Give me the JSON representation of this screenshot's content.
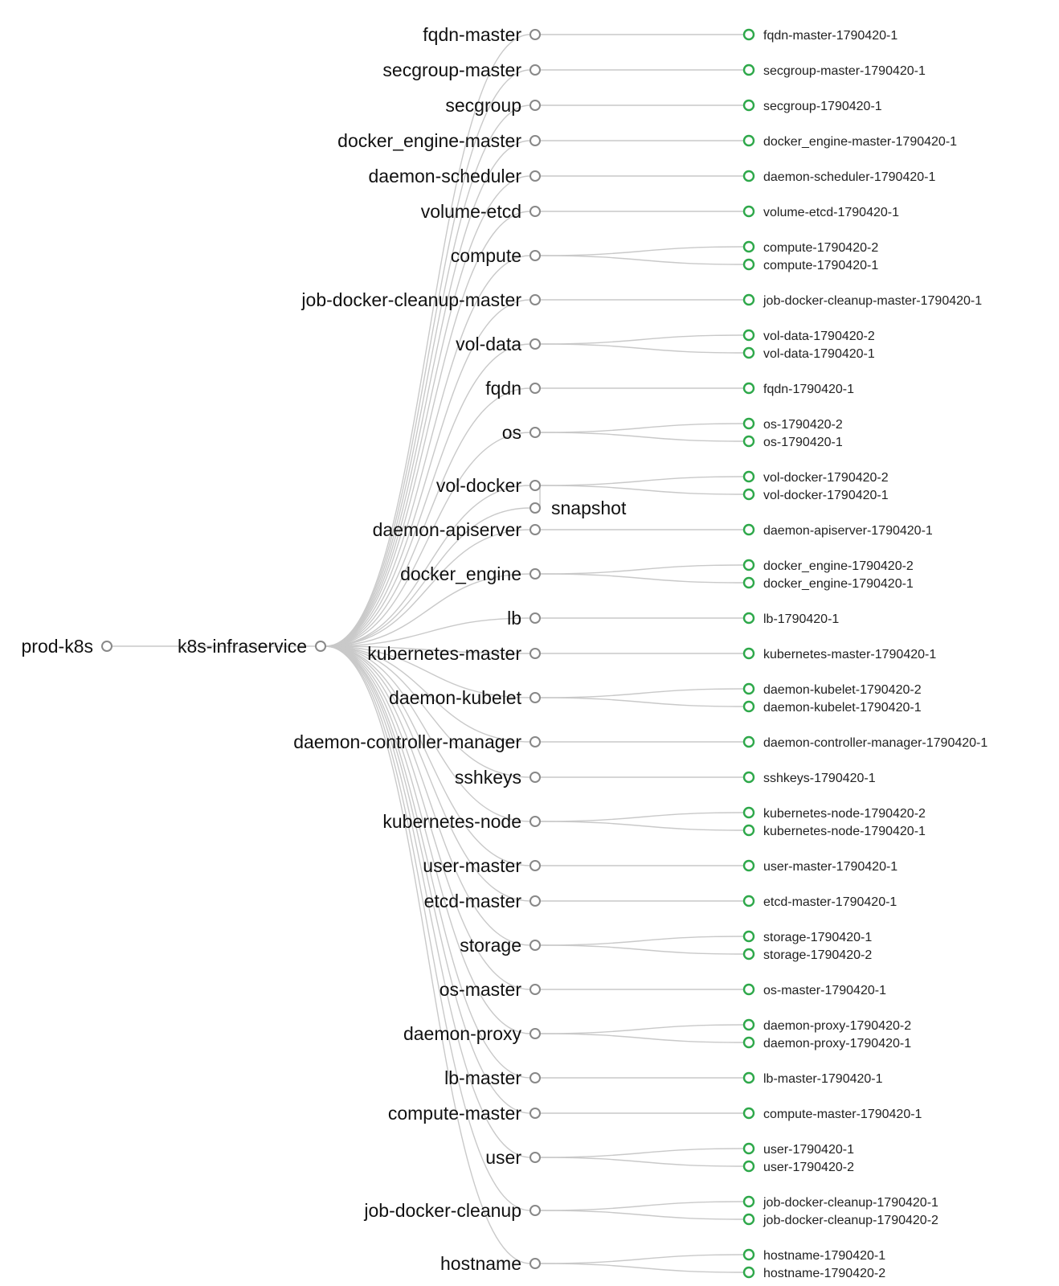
{
  "colors": {
    "leaf_node": "#2ea84a",
    "link": "#c9c9c9",
    "node_stroke": "#888888"
  },
  "root": {
    "label": "prod-k8s"
  },
  "service": {
    "label": "k8s-infraservice"
  },
  "groups": [
    {
      "label": "fqdn-master",
      "instances": [
        "fqdn-master-1790420-1"
      ]
    },
    {
      "label": "secgroup-master",
      "instances": [
        "secgroup-master-1790420-1"
      ]
    },
    {
      "label": "secgroup",
      "instances": [
        "secgroup-1790420-1"
      ]
    },
    {
      "label": "docker_engine-master",
      "instances": [
        "docker_engine-master-1790420-1"
      ]
    },
    {
      "label": "daemon-scheduler",
      "instances": [
        "daemon-scheduler-1790420-1"
      ]
    },
    {
      "label": "volume-etcd",
      "instances": [
        "volume-etcd-1790420-1"
      ]
    },
    {
      "label": "compute",
      "instances": [
        "compute-1790420-2",
        "compute-1790420-1"
      ]
    },
    {
      "label": "job-docker-cleanup-master",
      "instances": [
        "job-docker-cleanup-master-1790420-1"
      ]
    },
    {
      "label": "vol-data",
      "instances": [
        "vol-data-1790420-2",
        "vol-data-1790420-1"
      ]
    },
    {
      "label": "fqdn",
      "instances": [
        "fqdn-1790420-1"
      ]
    },
    {
      "label": "os",
      "instances": [
        "os-1790420-2",
        "os-1790420-1"
      ]
    },
    {
      "label": "vol-docker",
      "instances": [
        "vol-docker-1790420-2",
        "vol-docker-1790420-1"
      ],
      "sub": "snapshot"
    },
    {
      "label": "daemon-apiserver",
      "instances": [
        "daemon-apiserver-1790420-1"
      ]
    },
    {
      "label": "docker_engine",
      "instances": [
        "docker_engine-1790420-2",
        "docker_engine-1790420-1"
      ]
    },
    {
      "label": "lb",
      "instances": [
        "lb-1790420-1"
      ]
    },
    {
      "label": "kubernetes-master",
      "instances": [
        "kubernetes-master-1790420-1"
      ]
    },
    {
      "label": "daemon-kubelet",
      "instances": [
        "daemon-kubelet-1790420-2",
        "daemon-kubelet-1790420-1"
      ]
    },
    {
      "label": "daemon-controller-manager",
      "instances": [
        "daemon-controller-manager-1790420-1"
      ]
    },
    {
      "label": "sshkeys",
      "instances": [
        "sshkeys-1790420-1"
      ]
    },
    {
      "label": "kubernetes-node",
      "instances": [
        "kubernetes-node-1790420-2",
        "kubernetes-node-1790420-1"
      ]
    },
    {
      "label": "user-master",
      "instances": [
        "user-master-1790420-1"
      ]
    },
    {
      "label": "etcd-master",
      "instances": [
        "etcd-master-1790420-1"
      ]
    },
    {
      "label": "storage",
      "instances": [
        "storage-1790420-1",
        "storage-1790420-2"
      ]
    },
    {
      "label": "os-master",
      "instances": [
        "os-master-1790420-1"
      ]
    },
    {
      "label": "daemon-proxy",
      "instances": [
        "daemon-proxy-1790420-2",
        "daemon-proxy-1790420-1"
      ]
    },
    {
      "label": "lb-master",
      "instances": [
        "lb-master-1790420-1"
      ]
    },
    {
      "label": "compute-master",
      "instances": [
        "compute-master-1790420-1"
      ]
    },
    {
      "label": "user",
      "instances": [
        "user-1790420-1",
        "user-1790420-2"
      ]
    },
    {
      "label": "job-docker-cleanup",
      "instances": [
        "job-docker-cleanup-1790420-1",
        "job-docker-cleanup-1790420-2"
      ]
    },
    {
      "label": "hostname",
      "instances": [
        "hostname-1790420-1",
        "hostname-1790420-2"
      ]
    }
  ]
}
